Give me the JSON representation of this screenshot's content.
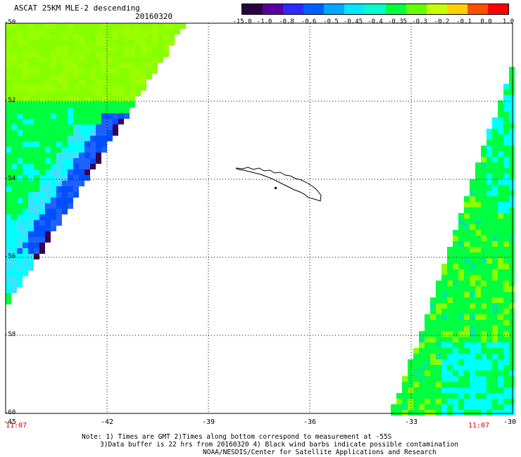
{
  "header": {
    "title": "ASCAT 25KM MLE-2 descending",
    "date": "20160320"
  },
  "colorbar": {
    "tick_labels": [
      "-15.0",
      "-1.0",
      "-0.8",
      "-0.6",
      "-0.5",
      "-0.45",
      "-0.4",
      "-0.35",
      "-0.3",
      "-0.2",
      "-0.1",
      "0.0",
      "1.0"
    ],
    "colors": [
      "#2a0040",
      "#5a00a0",
      "#2c2cff",
      "#0060ff",
      "#00a8ff",
      "#00e8ff",
      "#00ffcc",
      "#00ff40",
      "#66ff00",
      "#c8ff00",
      "#ffd000",
      "#ff5000",
      "#ff0000"
    ]
  },
  "map": {
    "lat_labels": [
      "-50",
      "-52",
      "-54",
      "-56",
      "-58",
      "-60"
    ],
    "lon_labels": [
      "-45",
      "-42",
      "-39",
      "-36",
      "-33",
      "-30"
    ],
    "time_labels": [
      "11:07",
      "11:07"
    ],
    "region": "South Georgia",
    "land_outline": "black",
    "swath_fill_colors": {
      "dominant": "#00ff40",
      "light": "#88ff00",
      "cyan": "#00ffff",
      "blue": "#0050ff",
      "dark_purple": "#3a0050"
    }
  },
  "notes": {
    "line1": "Note: 1) Times are GMT 2)Times along bottom correspond to measurement at -55S",
    "line2": "3)Data buffer is 22 hrs from 20160320 4) Black wind barbs indicate possible contamination",
    "credit": "NOAA/NESDIS/Center for Satellite Applications and Research"
  }
}
